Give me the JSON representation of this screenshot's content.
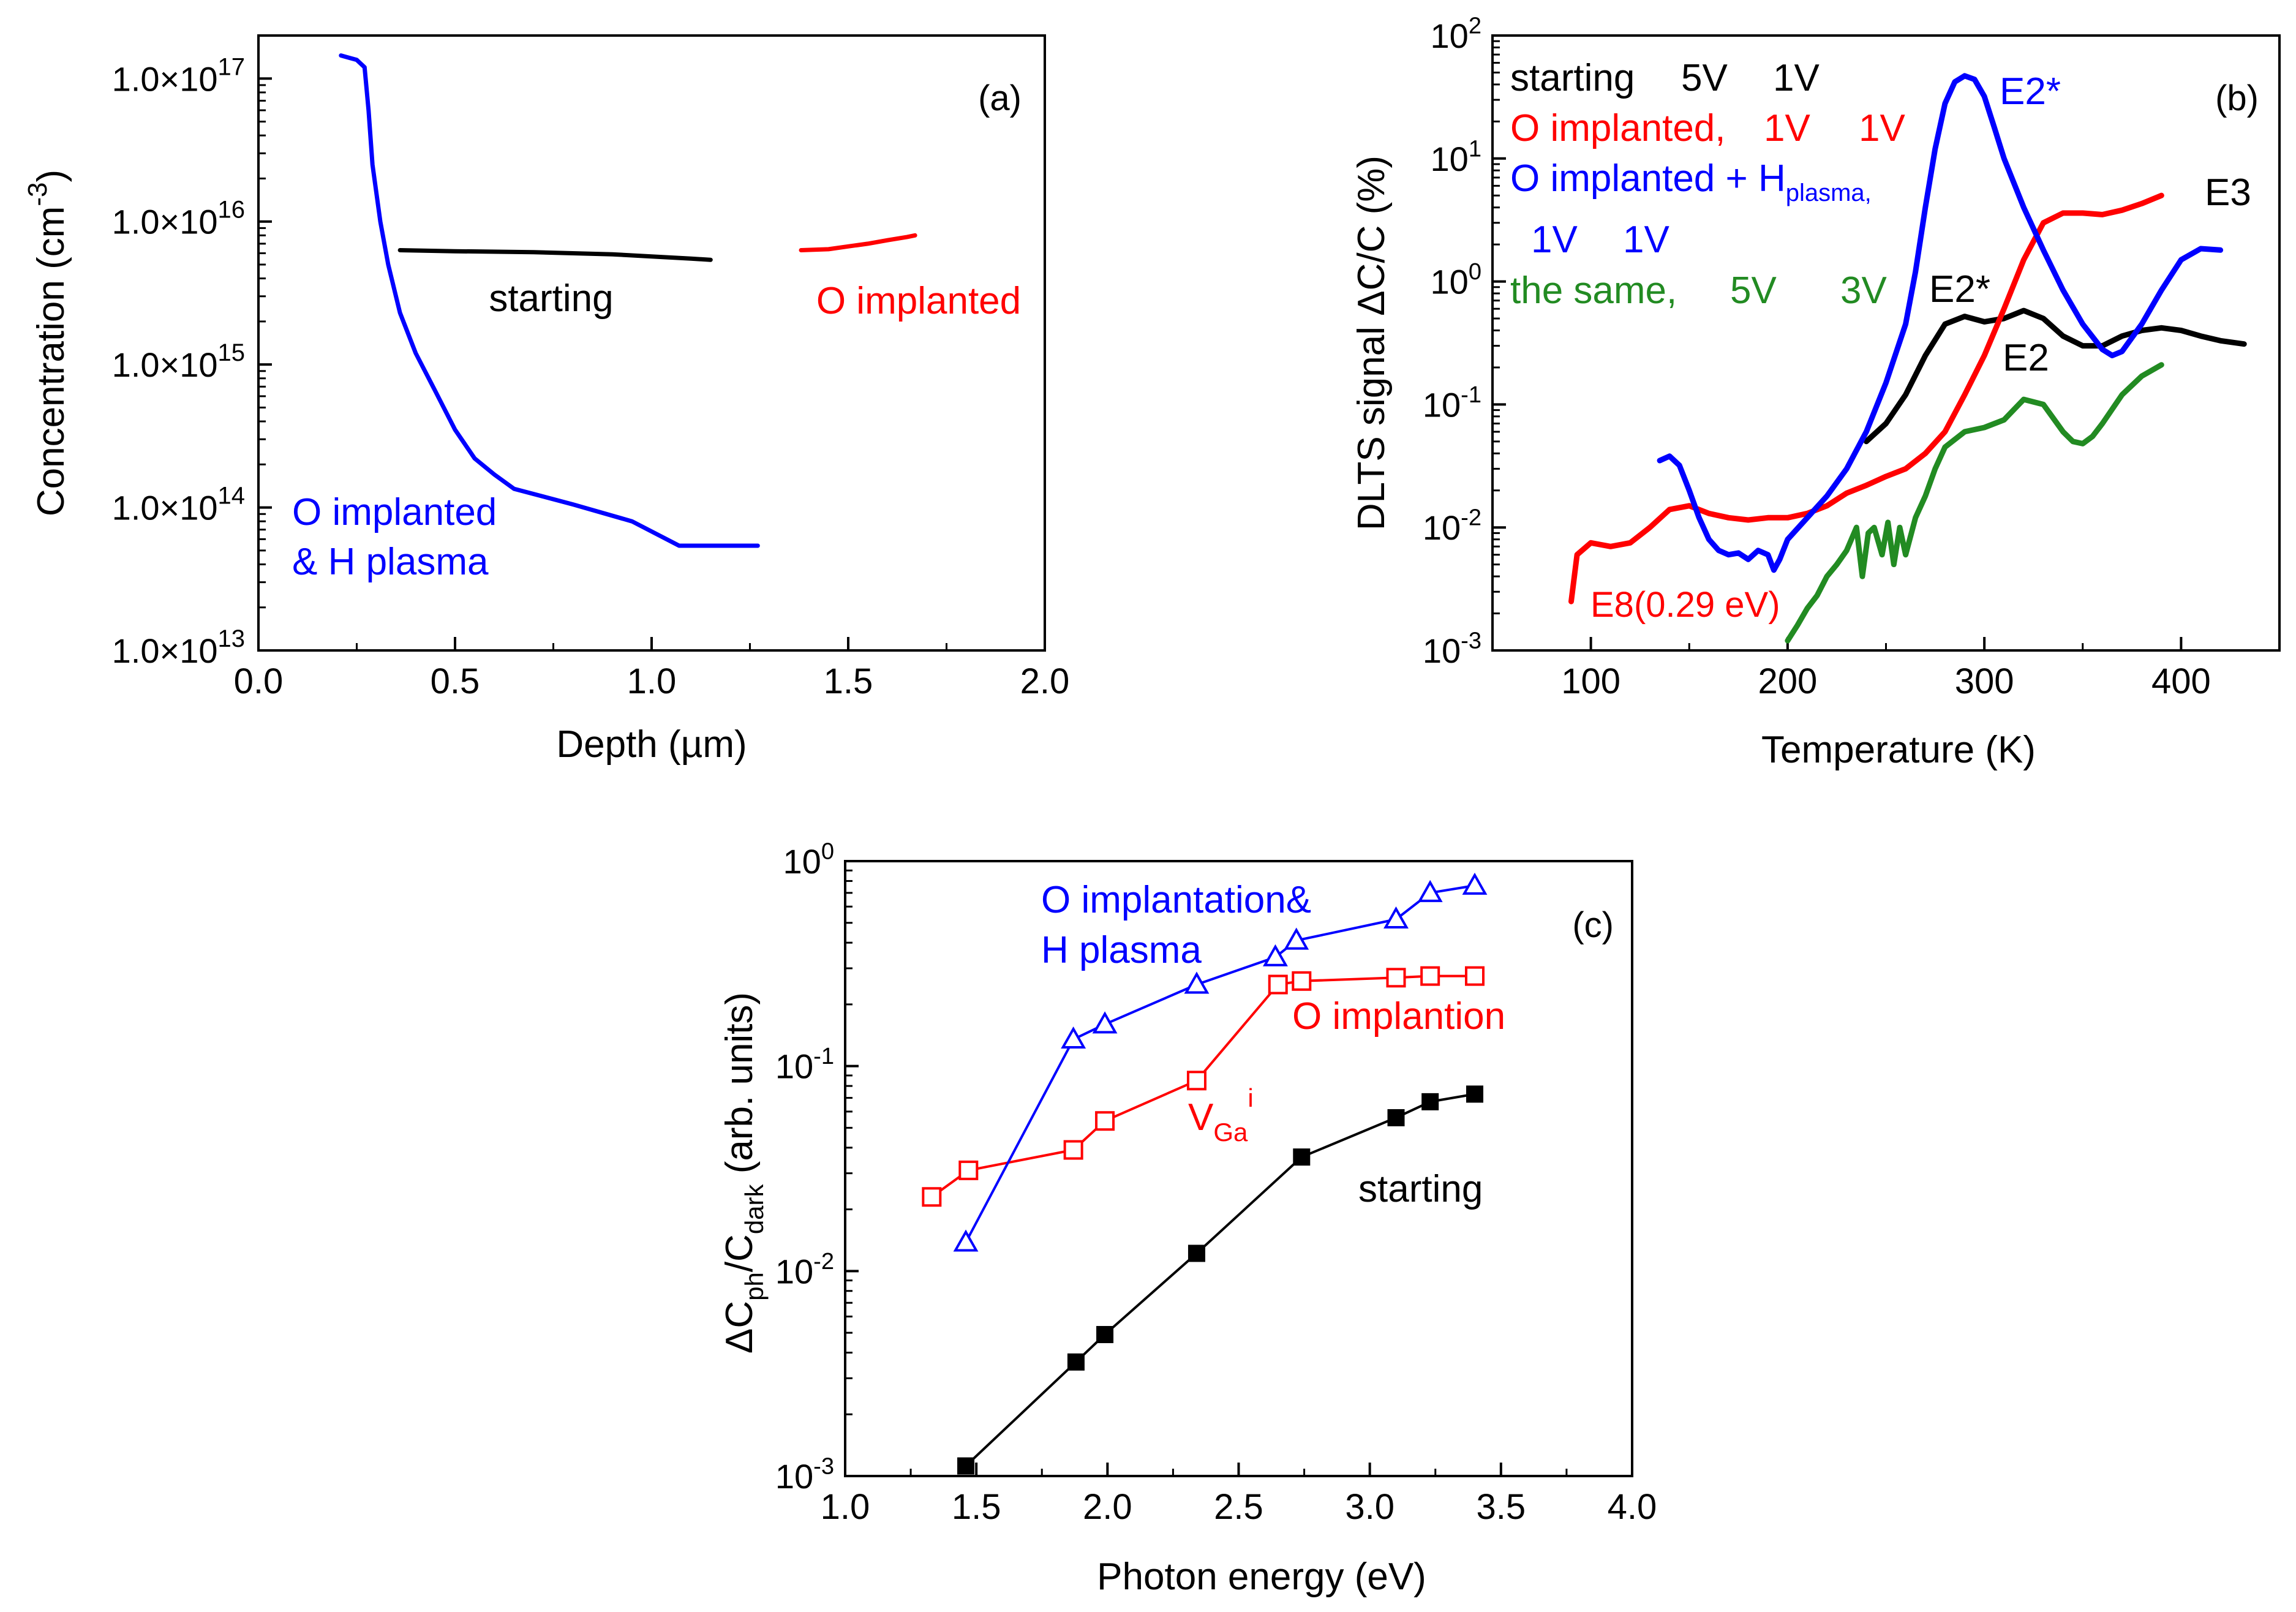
{
  "colors": {
    "black": "#000000",
    "red": "#ff0000",
    "blue": "#0000ff",
    "green": "#228b22"
  },
  "chart_data": [
    {
      "panel": "a",
      "type": "line",
      "panel_label": "(a)",
      "xlabel": "Depth (µm)",
      "ylabel": "Concentration (cm⁻³)",
      "xscale": "linear",
      "yscale": "log",
      "xlim": [
        0,
        2.0
      ],
      "ylim": [
        10000000000000.0,
        2e+17
      ],
      "xticks": [
        "0.0",
        "0.5",
        "1.0",
        "1.5",
        "2.0"
      ],
      "yticks": [
        "1.0×10¹³",
        "1.0×10¹⁴",
        "1.0×10¹⁵",
        "1.0×10¹⁶",
        "1.0×10¹⁷"
      ],
      "series": [
        {
          "color": "#000000",
          "label": "starting",
          "x": [
            0.36,
            0.5,
            0.7,
            0.9,
            1.0,
            1.1,
            1.15
          ],
          "y": [
            6300000000000000.0,
            6200000000000000.0,
            6100000000000000.0,
            5900000000000000.0,
            5700000000000000.0,
            5500000000000000.0,
            5400000000000000.0
          ]
        },
        {
          "color": "#ff0000",
          "label": "O implanted",
          "x": [
            1.38,
            1.45,
            1.5,
            1.55,
            1.6,
            1.65,
            1.67
          ],
          "y": [
            6300000000000000.0,
            6400000000000000.0,
            6700000000000000.0,
            7000000000000000.0,
            7400000000000000.0,
            7800000000000000.0,
            8000000000000000.0
          ]
        },
        {
          "color": "#0000ff",
          "label": "O implanted\n& H plasma",
          "x": [
            0.21,
            0.23,
            0.25,
            0.27,
            0.28,
            0.29,
            0.31,
            0.33,
            0.36,
            0.4,
            0.45,
            0.5,
            0.55,
            0.6,
            0.65,
            0.8,
            0.95,
            1.07,
            1.27
          ],
          "y": [
            1.45e+17,
            1.4e+17,
            1.35e+17,
            1.2e+17,
            6e+16,
            2.5e+16,
            1e+16,
            5000000000000000.0,
            2300000000000000.0,
            1200000000000000.0,
            650000000000000.0,
            350000000000000.0,
            220000000000000.0,
            170000000000000.0,
            135000000000000.0,
            105000000000000.0,
            80000000000000.0,
            54000000000000.0,
            54000000000000.0
          ]
        }
      ],
      "annotations": [
        {
          "text": "starting",
          "color": "#000000"
        },
        {
          "text": "O implanted",
          "color": "#ff0000"
        },
        {
          "text": "O implanted",
          "color": "#0000ff"
        },
        {
          "text": "& H plasma",
          "color": "#0000ff"
        }
      ]
    },
    {
      "panel": "b",
      "type": "line",
      "panel_label": "(b)",
      "xlabel": "Temperature (K)",
      "ylabel": "DLTS signal ΔC/C (%)",
      "xscale": "linear",
      "yscale": "log",
      "xlim": [
        50,
        450
      ],
      "ylim": [
        0.001,
        100
      ],
      "xticks": [
        "100",
        "200",
        "300",
        "400"
      ],
      "yticks": [
        "10⁻³",
        "10⁻²",
        "10⁻¹",
        "10⁰",
        "10¹",
        "10²"
      ],
      "series": [
        {
          "color": "#000000",
          "label": "starting 5V 1V",
          "x": [
            240,
            250,
            260,
            270,
            280,
            290,
            300,
            310,
            320,
            330,
            340,
            350,
            360,
            370,
            380,
            390,
            400,
            410,
            420,
            432
          ],
          "y": [
            0.05,
            0.07,
            0.12,
            0.25,
            0.45,
            0.52,
            0.47,
            0.5,
            0.58,
            0.5,
            0.36,
            0.3,
            0.3,
            0.36,
            0.4,
            0.42,
            0.4,
            0.36,
            0.33,
            0.31
          ]
        },
        {
          "color": "#ff0000",
          "label": "O implanted, 1V 1V",
          "x": [
            90,
            93,
            100,
            110,
            120,
            130,
            140,
            150,
            160,
            170,
            180,
            190,
            200,
            210,
            220,
            230,
            240,
            250,
            260,
            270,
            280,
            290,
            300,
            310,
            320,
            330,
            340,
            350,
            360,
            370,
            380,
            390
          ],
          "y": [
            0.0025,
            0.006,
            0.0075,
            0.007,
            0.0075,
            0.01,
            0.014,
            0.015,
            0.013,
            0.012,
            0.0115,
            0.012,
            0.012,
            0.013,
            0.015,
            0.019,
            0.022,
            0.026,
            0.03,
            0.04,
            0.06,
            0.12,
            0.25,
            0.6,
            1.5,
            3.0,
            3.6,
            3.6,
            3.5,
            3.8,
            4.3,
            5.0
          ]
        },
        {
          "color": "#0000ff",
          "label": "O implanted + H plasma, 1V 1V",
          "x": [
            135,
            140,
            145,
            150,
            155,
            160,
            165,
            170,
            175,
            180,
            185,
            190,
            193,
            196,
            200,
            210,
            220,
            230,
            240,
            250,
            260,
            265,
            270,
            275,
            280,
            285,
            290,
            295,
            300,
            305,
            310,
            320,
            330,
            340,
            350,
            360,
            365,
            370,
            380,
            390,
            400,
            410,
            420
          ],
          "y": [
            0.035,
            0.038,
            0.032,
            0.02,
            0.012,
            0.008,
            0.0065,
            0.006,
            0.0062,
            0.0055,
            0.0065,
            0.006,
            0.0045,
            0.0055,
            0.008,
            0.012,
            0.018,
            0.03,
            0.06,
            0.15,
            0.45,
            1.2,
            4,
            12,
            28,
            42,
            47,
            44,
            32,
            18,
            10,
            4,
            1.8,
            0.85,
            0.45,
            0.28,
            0.25,
            0.27,
            0.45,
            0.85,
            1.5,
            1.85,
            1.8
          ]
        },
        {
          "color": "#228b22",
          "label": "the same, 5V 3V",
          "x": [
            200,
            205,
            210,
            215,
            220,
            225,
            230,
            235,
            238,
            241,
            244,
            248,
            251,
            254,
            257,
            260,
            265,
            270,
            275,
            280,
            290,
            300,
            310,
            320,
            330,
            340,
            345,
            350,
            355,
            360,
            370,
            380,
            390
          ],
          "y": [
            0.0012,
            0.0016,
            0.0022,
            0.0028,
            0.004,
            0.005,
            0.0065,
            0.01,
            0.004,
            0.009,
            0.01,
            0.006,
            0.011,
            0.005,
            0.01,
            0.006,
            0.012,
            0.018,
            0.03,
            0.045,
            0.06,
            0.065,
            0.075,
            0.11,
            0.1,
            0.06,
            0.05,
            0.048,
            0.055,
            0.07,
            0.12,
            0.17,
            0.21
          ]
        }
      ],
      "legend": {
        "placement": "top-left",
        "entries": [
          {
            "parts": [
              "starting",
              "5V",
              "1V"
            ],
            "color": "#000000"
          },
          {
            "parts": [
              "O implanted,",
              "1V",
              "1V"
            ],
            "color": "#ff0000"
          },
          {
            "parts": [
              "O implanted + H",
              "plasma,",
              "1V",
              "1V"
            ],
            "color": "#0000ff"
          },
          {
            "parts": [
              "the same,",
              "5V",
              "3V"
            ],
            "color": "#228b22"
          }
        ]
      },
      "annotations": [
        {
          "text": "E2*",
          "color": "#0000ff"
        },
        {
          "text": "E3",
          "color": "#000000"
        },
        {
          "text": "E2*",
          "color": "#000000"
        },
        {
          "text": "E2",
          "color": "#000000"
        },
        {
          "text": "E8(0.29 eV)",
          "color": "#ff0000"
        }
      ]
    },
    {
      "panel": "c",
      "type": "scatter",
      "panel_label": "(c)",
      "xlabel": "Photon energy (eV)",
      "ylabel_parts": [
        "ΔC",
        "ph",
        "/C",
        "dark",
        " (arb. units)"
      ],
      "xscale": "linear",
      "yscale": "log",
      "xlim": [
        1.0,
        4.0
      ],
      "ylim": [
        0.001,
        1
      ],
      "xticks": [
        "1.0",
        "1.5",
        "2.0",
        "2.5",
        "3.0",
        "3.5",
        "4.0"
      ],
      "yticks": [
        "10⁻³",
        "10⁻²",
        "10⁻¹",
        "10⁰"
      ],
      "series": [
        {
          "color": "#000000",
          "marker": "filled-square",
          "label": "starting",
          "x": [
            1.46,
            1.88,
            1.99,
            2.34,
            2.74,
            3.1,
            3.23,
            3.4
          ],
          "y": [
            0.00112,
            0.0036,
            0.0049,
            0.0122,
            0.036,
            0.056,
            0.067,
            0.073
          ]
        },
        {
          "color": "#ff0000",
          "marker": "open-square",
          "label": "O implantion",
          "x": [
            1.33,
            1.47,
            1.87,
            1.99,
            2.34,
            2.65,
            2.74,
            3.1,
            3.23,
            3.4
          ],
          "y": [
            0.023,
            0.031,
            0.039,
            0.054,
            0.085,
            0.25,
            0.26,
            0.27,
            0.275,
            0.275
          ]
        },
        {
          "color": "#0000ff",
          "marker": "open-triangle",
          "label": "O implantation& H plasma",
          "x": [
            1.46,
            1.87,
            1.99,
            2.34,
            2.64,
            2.72,
            3.1,
            3.23,
            3.4
          ],
          "y": [
            0.0138,
            0.135,
            0.16,
            0.25,
            0.34,
            0.41,
            0.52,
            0.7,
            0.76
          ]
        }
      ],
      "annotations": [
        {
          "text": "O implantation&",
          "color": "#0000ff"
        },
        {
          "text": "H plasma",
          "color": "#0000ff"
        },
        {
          "text": "O implantion",
          "color": "#ff0000"
        },
        {
          "text": "starting",
          "color": "#000000"
        },
        {
          "text_parts": [
            "V",
            "Ga",
            "i"
          ],
          "color": "#ff0000"
        }
      ]
    }
  ]
}
